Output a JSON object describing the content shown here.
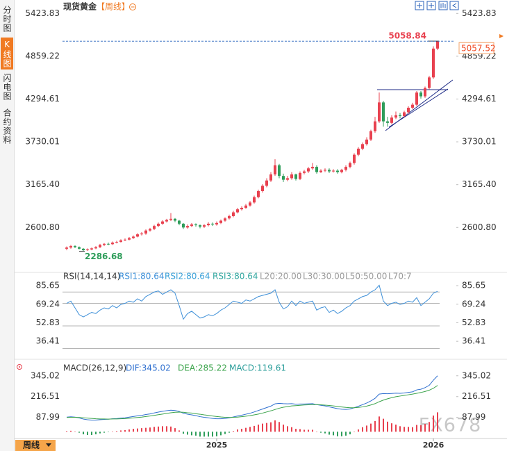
{
  "sidebar": {
    "tabs": [
      "分时图",
      "K线图",
      "闪电图",
      "合约资料"
    ]
  },
  "chart_data": [
    {
      "type": "candlestick",
      "title": "现货黄金",
      "subtitle": "【周线】",
      "categories": [
        null,
        null,
        null,
        null,
        null,
        null,
        null,
        null,
        null,
        null,
        null,
        null,
        null,
        null,
        null,
        null,
        null,
        null,
        null,
        null,
        null,
        null,
        null,
        null,
        null,
        null,
        null,
        null,
        null,
        null,
        null,
        null,
        null,
        null,
        null,
        null,
        "2025",
        null,
        null,
        null,
        null,
        null,
        null,
        null,
        null,
        null,
        null,
        null,
        null,
        null,
        null,
        null,
        null,
        null,
        null,
        null,
        null,
        null,
        null,
        null,
        null,
        null,
        null,
        null,
        null,
        null,
        null,
        null,
        null,
        null,
        null,
        null,
        null,
        null,
        null,
        null,
        null,
        null,
        null,
        null,
        null,
        null,
        null,
        null,
        null,
        null,
        null,
        null,
        "2026",
        null
      ],
      "open": [
        2320,
        2335,
        2355,
        2340,
        2320,
        2300,
        2310,
        2325,
        2340,
        2370,
        2385,
        2380,
        2400,
        2410,
        2430,
        2440,
        2460,
        2480,
        2510,
        2520,
        2560,
        2580,
        2620,
        2650,
        2680,
        2700,
        2715,
        2690,
        2650,
        2600,
        2620,
        2640,
        2630,
        2610,
        2630,
        2650,
        2640,
        2660,
        2690,
        2720,
        2750,
        2800,
        2840,
        2860,
        2890,
        2930,
        3000,
        3080,
        3150,
        3220,
        3300,
        3420,
        3280,
        3230,
        3250,
        3300,
        3240,
        3320,
        3340,
        3380,
        3400,
        3330,
        3350,
        3360,
        3340,
        3350,
        3330,
        3360,
        3400,
        3450,
        3560,
        3640,
        3700,
        3760,
        3870,
        4000,
        4250,
        4000,
        3980,
        4050,
        4080,
        4070,
        4120,
        4180,
        4220,
        4380,
        4330,
        4440,
        4580,
        4960
      ],
      "high": [
        2350,
        2370,
        2365,
        2350,
        2330,
        2325,
        2335,
        2355,
        2385,
        2395,
        2400,
        2415,
        2425,
        2445,
        2455,
        2475,
        2495,
        2525,
        2540,
        2575,
        2595,
        2635,
        2665,
        2695,
        2715,
        2790,
        2725,
        2700,
        2660,
        2640,
        2660,
        2655,
        2640,
        2645,
        2670,
        2665,
        2680,
        2705,
        2735,
        2770,
        2820,
        2860,
        2880,
        2910,
        2950,
        3020,
        3100,
        3170,
        3250,
        3330,
        3500,
        3440,
        3310,
        3280,
        3330,
        3310,
        3340,
        3360,
        3400,
        3450,
        3420,
        3370,
        3380,
        3380,
        3370,
        3370,
        3375,
        3420,
        3470,
        3580,
        3660,
        3720,
        3790,
        3890,
        4060,
        4380,
        4270,
        4060,
        4080,
        4130,
        4110,
        4140,
        4200,
        4245,
        4400,
        4400,
        4460,
        4600,
        4990,
        5058.84
      ],
      "low": [
        2300,
        2320,
        2330,
        2310,
        2286.68,
        2290,
        2300,
        2315,
        2330,
        2355,
        2365,
        2370,
        2390,
        2400,
        2420,
        2430,
        2450,
        2470,
        2495,
        2505,
        2545,
        2565,
        2605,
        2635,
        2665,
        2685,
        2670,
        2630,
        2580,
        2585,
        2605,
        2610,
        2590,
        2595,
        2615,
        2620,
        2625,
        2645,
        2675,
        2705,
        2735,
        2785,
        2825,
        2845,
        2875,
        2915,
        2985,
        3060,
        3130,
        3200,
        3280,
        3250,
        3200,
        3210,
        3230,
        3220,
        3225,
        3300,
        3320,
        3360,
        3310,
        3320,
        3330,
        3320,
        3325,
        3310,
        3315,
        3340,
        3380,
        3430,
        3540,
        3620,
        3680,
        3740,
        3850,
        3980,
        3930,
        3930,
        3960,
        4030,
        4040,
        4050,
        4100,
        4160,
        4200,
        4300,
        4310,
        4420,
        4560,
        4940
      ],
      "close": [
        2335,
        2355,
        2340,
        2320,
        2300,
        2310,
        2325,
        2340,
        2370,
        2385,
        2380,
        2400,
        2410,
        2430,
        2440,
        2460,
        2480,
        2510,
        2520,
        2560,
        2580,
        2620,
        2650,
        2680,
        2700,
        2715,
        2690,
        2650,
        2600,
        2620,
        2640,
        2630,
        2610,
        2630,
        2650,
        2640,
        2660,
        2690,
        2720,
        2750,
        2800,
        2840,
        2860,
        2890,
        2930,
        3000,
        3080,
        3150,
        3220,
        3300,
        3420,
        3280,
        3230,
        3250,
        3300,
        3240,
        3320,
        3340,
        3380,
        3400,
        3330,
        3350,
        3360,
        3340,
        3350,
        3330,
        3360,
        3400,
        3450,
        3560,
        3640,
        3700,
        3760,
        3870,
        4000,
        4250,
        4000,
        3980,
        4050,
        4080,
        4070,
        4120,
        4180,
        4220,
        4380,
        4330,
        4440,
        4580,
        4960,
        5057.52
      ],
      "up_color": "#e8414f",
      "down_color": "#2e9d5a",
      "ylim": [
        2200,
        5500
      ],
      "yticks": [
        5423.83,
        4859.22,
        4294.61,
        3730.01,
        {
          "value": 3165.4,
          "label": "3165.40"
        },
        {
          "value": 2600.8,
          "label": "2600.80"
        }
      ]
    },
    {
      "type": "line",
      "title": "RSI(14,14,14)",
      "series": [
        {
          "name": "RSI1:80.64",
          "color": "#3d8fd8",
          "values": [
            70,
            72,
            66,
            60,
            58,
            60,
            62,
            61,
            64,
            66,
            65,
            68,
            66,
            69,
            70,
            72,
            71,
            74,
            72,
            76,
            78,
            80,
            81,
            78,
            80,
            82,
            79,
            68,
            56,
            61,
            63,
            60,
            57,
            58,
            60,
            59,
            61,
            64,
            66,
            69,
            72,
            71,
            70,
            73,
            72,
            74,
            76,
            77,
            78,
            79,
            82,
            71,
            65,
            67,
            72,
            68,
            72,
            70,
            71,
            72,
            64,
            66,
            67,
            62,
            64,
            61,
            63,
            66,
            68,
            72,
            74,
            76,
            77,
            80,
            82,
            86,
            72,
            68,
            70,
            71,
            69,
            70,
            72,
            71,
            75,
            68,
            71,
            74,
            79,
            80.64
          ]
        }
      ],
      "legend": [
        "RSI2:80.64",
        "RSI3:80.64",
        "L20:20.00",
        "L30:30.00",
        "L50:50.00",
        "L70:7"
      ],
      "levels": [
        80,
        70,
        50,
        30
      ],
      "ylim": [
        24,
        90
      ],
      "yticks": [
        85.65,
        69.24,
        52.83,
        36.41
      ]
    },
    {
      "type": "macd",
      "title": "MACD(26,12,9)",
      "series": [
        {
          "name": "DIF:345.02",
          "color": "#2e6fcf",
          "values": [
            90,
            92,
            90,
            85,
            78,
            74,
            72,
            72,
            74,
            76,
            77,
            80,
            81,
            84,
            86,
            90,
            94,
            98,
            101,
            106,
            110,
            116,
            121,
            126,
            130,
            133,
            131,
            125,
            114,
            108,
            104,
            99,
            93,
            89,
            86,
            82,
            80,
            80,
            82,
            85,
            91,
            97,
            102,
            108,
            114,
            122,
            131,
            140,
            149,
            158,
            172,
            175,
            173,
            172,
            173,
            170,
            171,
            171,
            172,
            173,
            167,
            163,
            159,
            153,
            148,
            142,
            139,
            138,
            140,
            148,
            157,
            167,
            177,
            190,
            206,
            232,
            235,
            234,
            236,
            238,
            237,
            239,
            243,
            246,
            258,
            262,
            272,
            286,
            318,
            345.02
          ]
        },
        {
          "name": "DEA:285.22",
          "color": "#3aa34a",
          "values": [
            88,
            89,
            89,
            88,
            86,
            84,
            82,
            80,
            79,
            79,
            78,
            79,
            79,
            80,
            81,
            83,
            85,
            88,
            90,
            94,
            97,
            101,
            105,
            109,
            113,
            117,
            120,
            121,
            120,
            117,
            115,
            111,
            108,
            104,
            101,
            97,
            94,
            91,
            89,
            88,
            89,
            90,
            93,
            96,
            99,
            104,
            109,
            115,
            122,
            129,
            137,
            145,
            151,
            155,
            159,
            161,
            163,
            165,
            166,
            167,
            167,
            166,
            164,
            162,
            159,
            156,
            153,
            150,
            148,
            148,
            150,
            153,
            158,
            165,
            173,
            185,
            195,
            203,
            210,
            216,
            220,
            224,
            228,
            232,
            237,
            242,
            248,
            256,
            268,
            285.22
          ]
        },
        {
          "name": "MACD:119.61",
          "color": "#2a9d9a",
          "values": [
            4,
            6,
            2,
            -6,
            -16,
            -20,
            -20,
            -16,
            -10,
            -6,
            -2,
            2,
            4,
            8,
            10,
            14,
            18,
            20,
            22,
            24,
            26,
            30,
            32,
            34,
            34,
            32,
            22,
            8,
            -12,
            -18,
            -22,
            -24,
            -30,
            -30,
            -30,
            -30,
            -28,
            -22,
            -14,
            -6,
            4,
            14,
            18,
            24,
            30,
            36,
            44,
            50,
            54,
            58,
            70,
            60,
            44,
            34,
            28,
            18,
            16,
            12,
            12,
            12,
            0,
            -6,
            -10,
            -18,
            -22,
            -28,
            -28,
            -24,
            -16,
            0,
            14,
            28,
            38,
            50,
            66,
            94,
            80,
            62,
            52,
            44,
            34,
            30,
            30,
            28,
            42,
            40,
            48,
            60,
            100,
            119.61
          ]
        }
      ],
      "up_color": "#e8414f",
      "down_color": "#2e9d5a",
      "ylim": [
        -40,
        410
      ],
      "yticks": [
        345.02,
        216.51,
        87.99
      ]
    }
  ],
  "period_button": "周线",
  "watermark": "FX678"
}
